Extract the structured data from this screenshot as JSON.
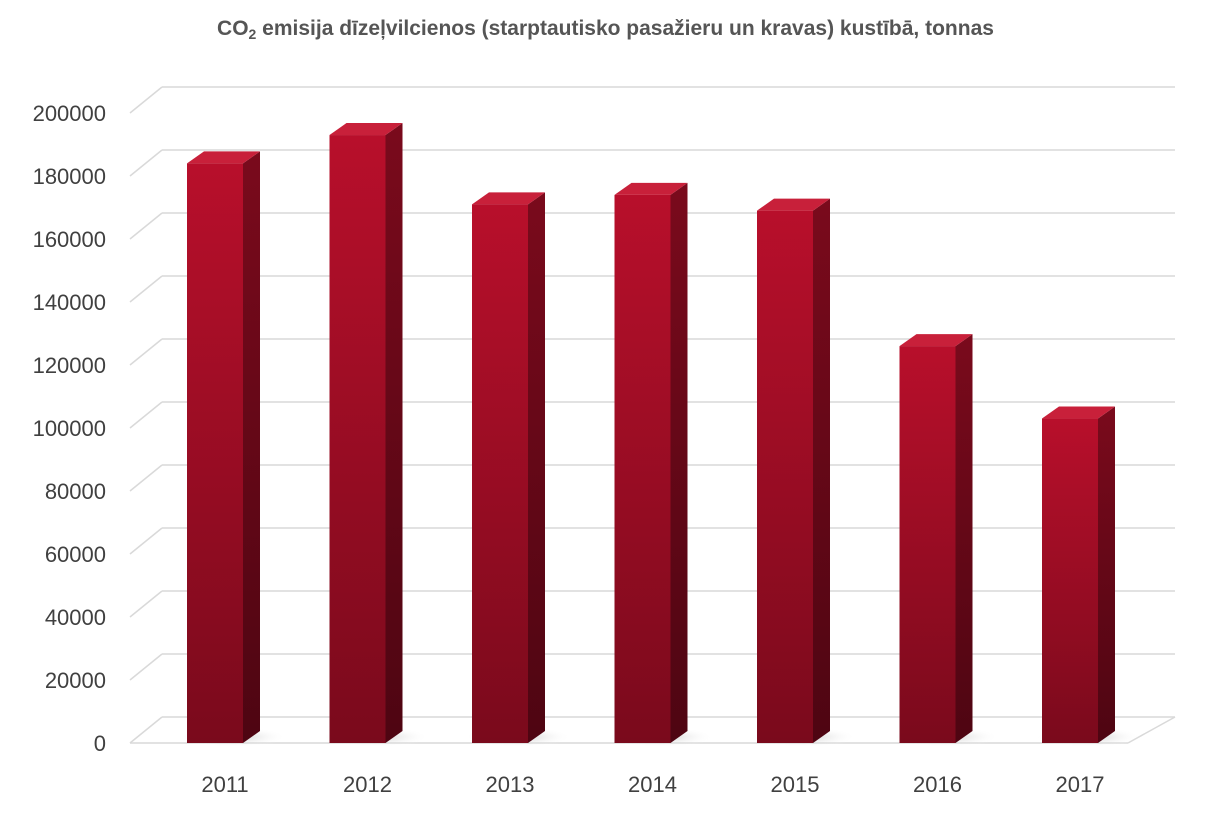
{
  "chart_data": {
    "type": "bar",
    "title": {
      "prefix": "CO",
      "subscript": "2",
      "rest": " emisija dīzeļvilcienos (starptautisko pasažieru un kravas) kustībā, tonnas"
    },
    "categories": [
      "2011",
      "2012",
      "2013",
      "2014",
      "2015",
      "2016",
      "2017"
    ],
    "values": [
      184000,
      193000,
      171000,
      174000,
      169000,
      126000,
      103000
    ],
    "yticks": [
      "0",
      "20000",
      "40000",
      "60000",
      "80000",
      "100000",
      "120000",
      "140000",
      "160000",
      "180000",
      "200000"
    ],
    "ylim": [
      0,
      200000
    ],
    "xlabel": "",
    "ylabel": "",
    "grid": true,
    "legend": "none",
    "bar_color": "#b0102a",
    "bar_side_color": "#6a0818",
    "bar_top_color": "#c8203a"
  }
}
